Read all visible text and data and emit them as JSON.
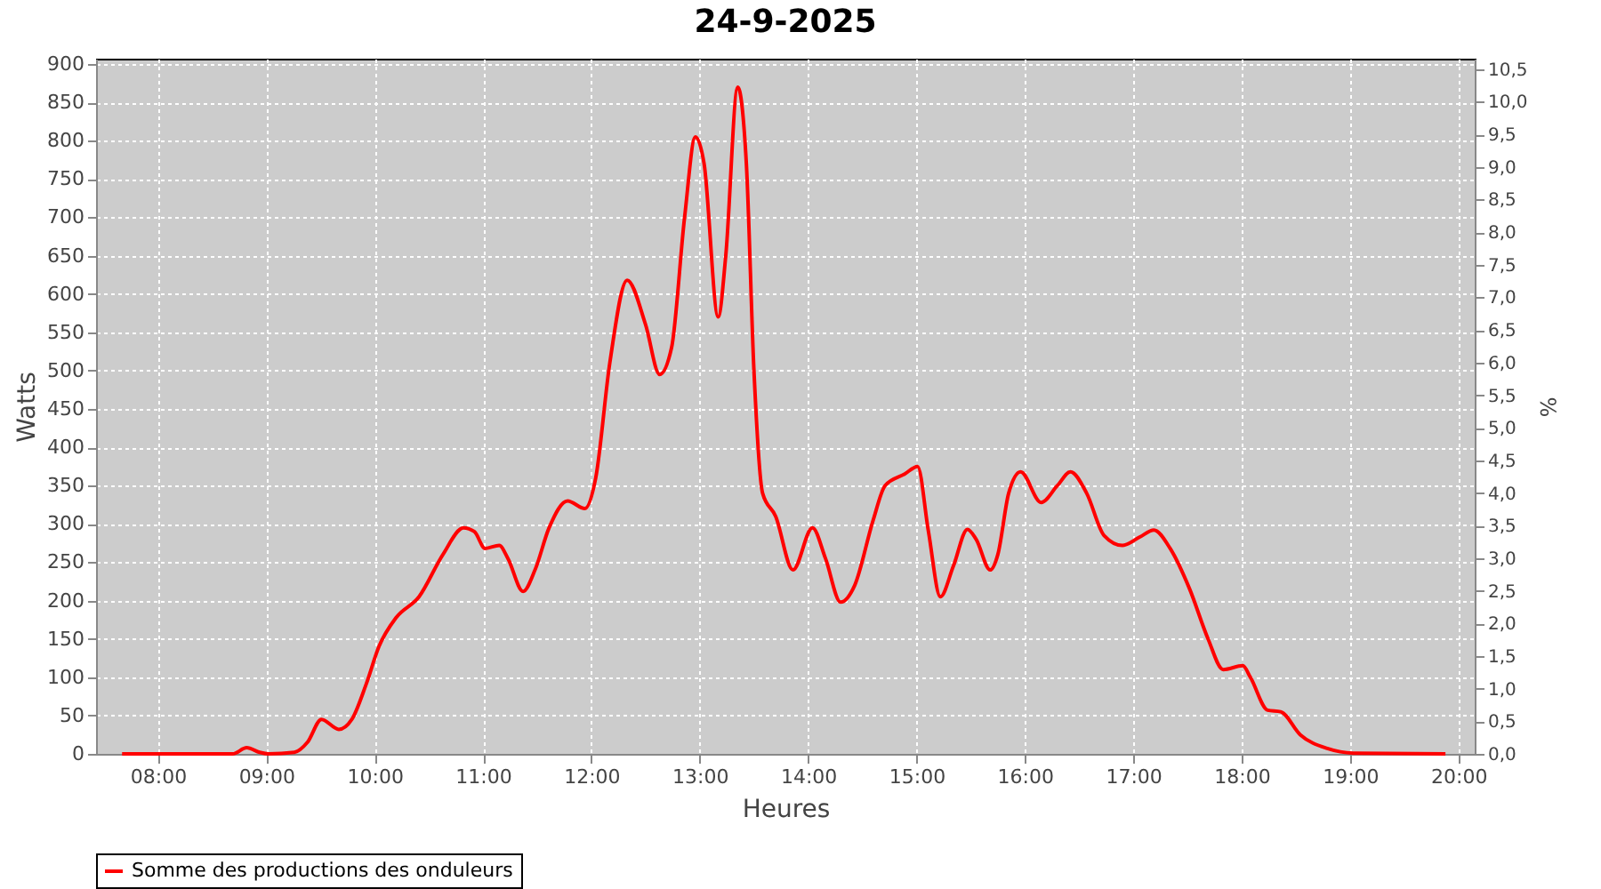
{
  "chart_data": {
    "type": "line",
    "title": "24-9-2025",
    "xlabel": "Heures",
    "ylabel": "Watts",
    "y2label": "%",
    "x": [
      7.67,
      8.69,
      8.82,
      8.94,
      9.02,
      9.26,
      9.38,
      9.51,
      9.67,
      9.79,
      9.92,
      10.04,
      10.2,
      10.41,
      10.63,
      10.82,
      10.92,
      11.02,
      11.15,
      11.23,
      11.37,
      11.48,
      11.61,
      11.78,
      11.94,
      12.04,
      12.17,
      12.33,
      12.5,
      12.63,
      12.74,
      12.86,
      12.96,
      13.04,
      13.17,
      13.24,
      13.35,
      13.43,
      13.5,
      13.58,
      13.7,
      13.86,
      14.04,
      14.16,
      14.3,
      14.43,
      14.6,
      14.71,
      14.89,
      15.01,
      15.11,
      15.22,
      15.34,
      15.47,
      15.55,
      15.68,
      15.75,
      15.85,
      15.96,
      16.15,
      16.3,
      16.42,
      16.57,
      16.73,
      16.9,
      17.06,
      17.19,
      17.34,
      17.52,
      17.69,
      17.83,
      18.01,
      18.08,
      18.24,
      18.36,
      18.54,
      18.79,
      19.03,
      19.88
    ],
    "series": [
      {
        "name": "Somme des productions des onduleurs",
        "color": "#ff0000",
        "values": [
          0,
          0,
          8,
          2,
          0,
          2,
          15,
          45,
          32,
          45,
          90,
          140,
          178,
          205,
          260,
          295,
          290,
          268,
          272,
          255,
          212,
          240,
          295,
          330,
          320,
          360,
          510,
          618,
          560,
          495,
          530,
          700,
          805,
          770,
          570,
          650,
          870,
          770,
          500,
          340,
          310,
          240,
          295,
          255,
          198,
          220,
          305,
          350,
          365,
          375,
          290,
          205,
          245,
          293,
          280,
          240,
          260,
          340,
          368,
          328,
          350,
          368,
          340,
          285,
          272,
          283,
          292,
          268,
          215,
          150,
          110,
          115,
          100,
          57,
          55,
          25,
          7,
          1,
          0
        ]
      }
    ],
    "xlim": [
      7.43,
      20.15
    ],
    "xticks": [
      {
        "value": 8,
        "label": "08:00"
      },
      {
        "value": 9,
        "label": "09:00"
      },
      {
        "value": 10,
        "label": "10:00"
      },
      {
        "value": 11,
        "label": "11:00"
      },
      {
        "value": 12,
        "label": "12:00"
      },
      {
        "value": 13,
        "label": "13:00"
      },
      {
        "value": 14,
        "label": "14:00"
      },
      {
        "value": 15,
        "label": "15:00"
      },
      {
        "value": 16,
        "label": "16:00"
      },
      {
        "value": 17,
        "label": "17:00"
      },
      {
        "value": 18,
        "label": "18:00"
      },
      {
        "value": 19,
        "label": "19:00"
      },
      {
        "value": 20,
        "label": "20:00"
      }
    ],
    "ylim": [
      0,
      907
    ],
    "yticks": [
      0,
      50,
      100,
      150,
      200,
      250,
      300,
      350,
      400,
      450,
      500,
      550,
      600,
      650,
      700,
      750,
      800,
      850,
      900
    ],
    "y2lim": [
      0,
      10.66
    ],
    "y2ticks": [
      {
        "value": 0,
        "label": "0,0"
      },
      {
        "value": 0.5,
        "label": "0,5"
      },
      {
        "value": 1,
        "label": "1,0"
      },
      {
        "value": 1.5,
        "label": "1,5"
      },
      {
        "value": 2,
        "label": "2,0"
      },
      {
        "value": 2.5,
        "label": "2,5"
      },
      {
        "value": 3,
        "label": "3,0"
      },
      {
        "value": 3.5,
        "label": "3,5"
      },
      {
        "value": 4,
        "label": "4,0"
      },
      {
        "value": 4.5,
        "label": "4,5"
      },
      {
        "value": 5,
        "label": "5,0"
      },
      {
        "value": 5.5,
        "label": "5,5"
      },
      {
        "value": 6,
        "label": "6,0"
      },
      {
        "value": 6.5,
        "label": "6,5"
      },
      {
        "value": 7,
        "label": "7,0"
      },
      {
        "value": 7.5,
        "label": "7,5"
      },
      {
        "value": 8,
        "label": "8,0"
      },
      {
        "value": 8.5,
        "label": "8,5"
      },
      {
        "value": 9,
        "label": "9,0"
      },
      {
        "value": 9.5,
        "label": "9,5"
      },
      {
        "value": 10,
        "label": "10,0"
      },
      {
        "value": 10.5,
        "label": "10,5"
      }
    ],
    "grid": true,
    "legend": "bottom",
    "marker": "none",
    "line_style": "solid"
  }
}
